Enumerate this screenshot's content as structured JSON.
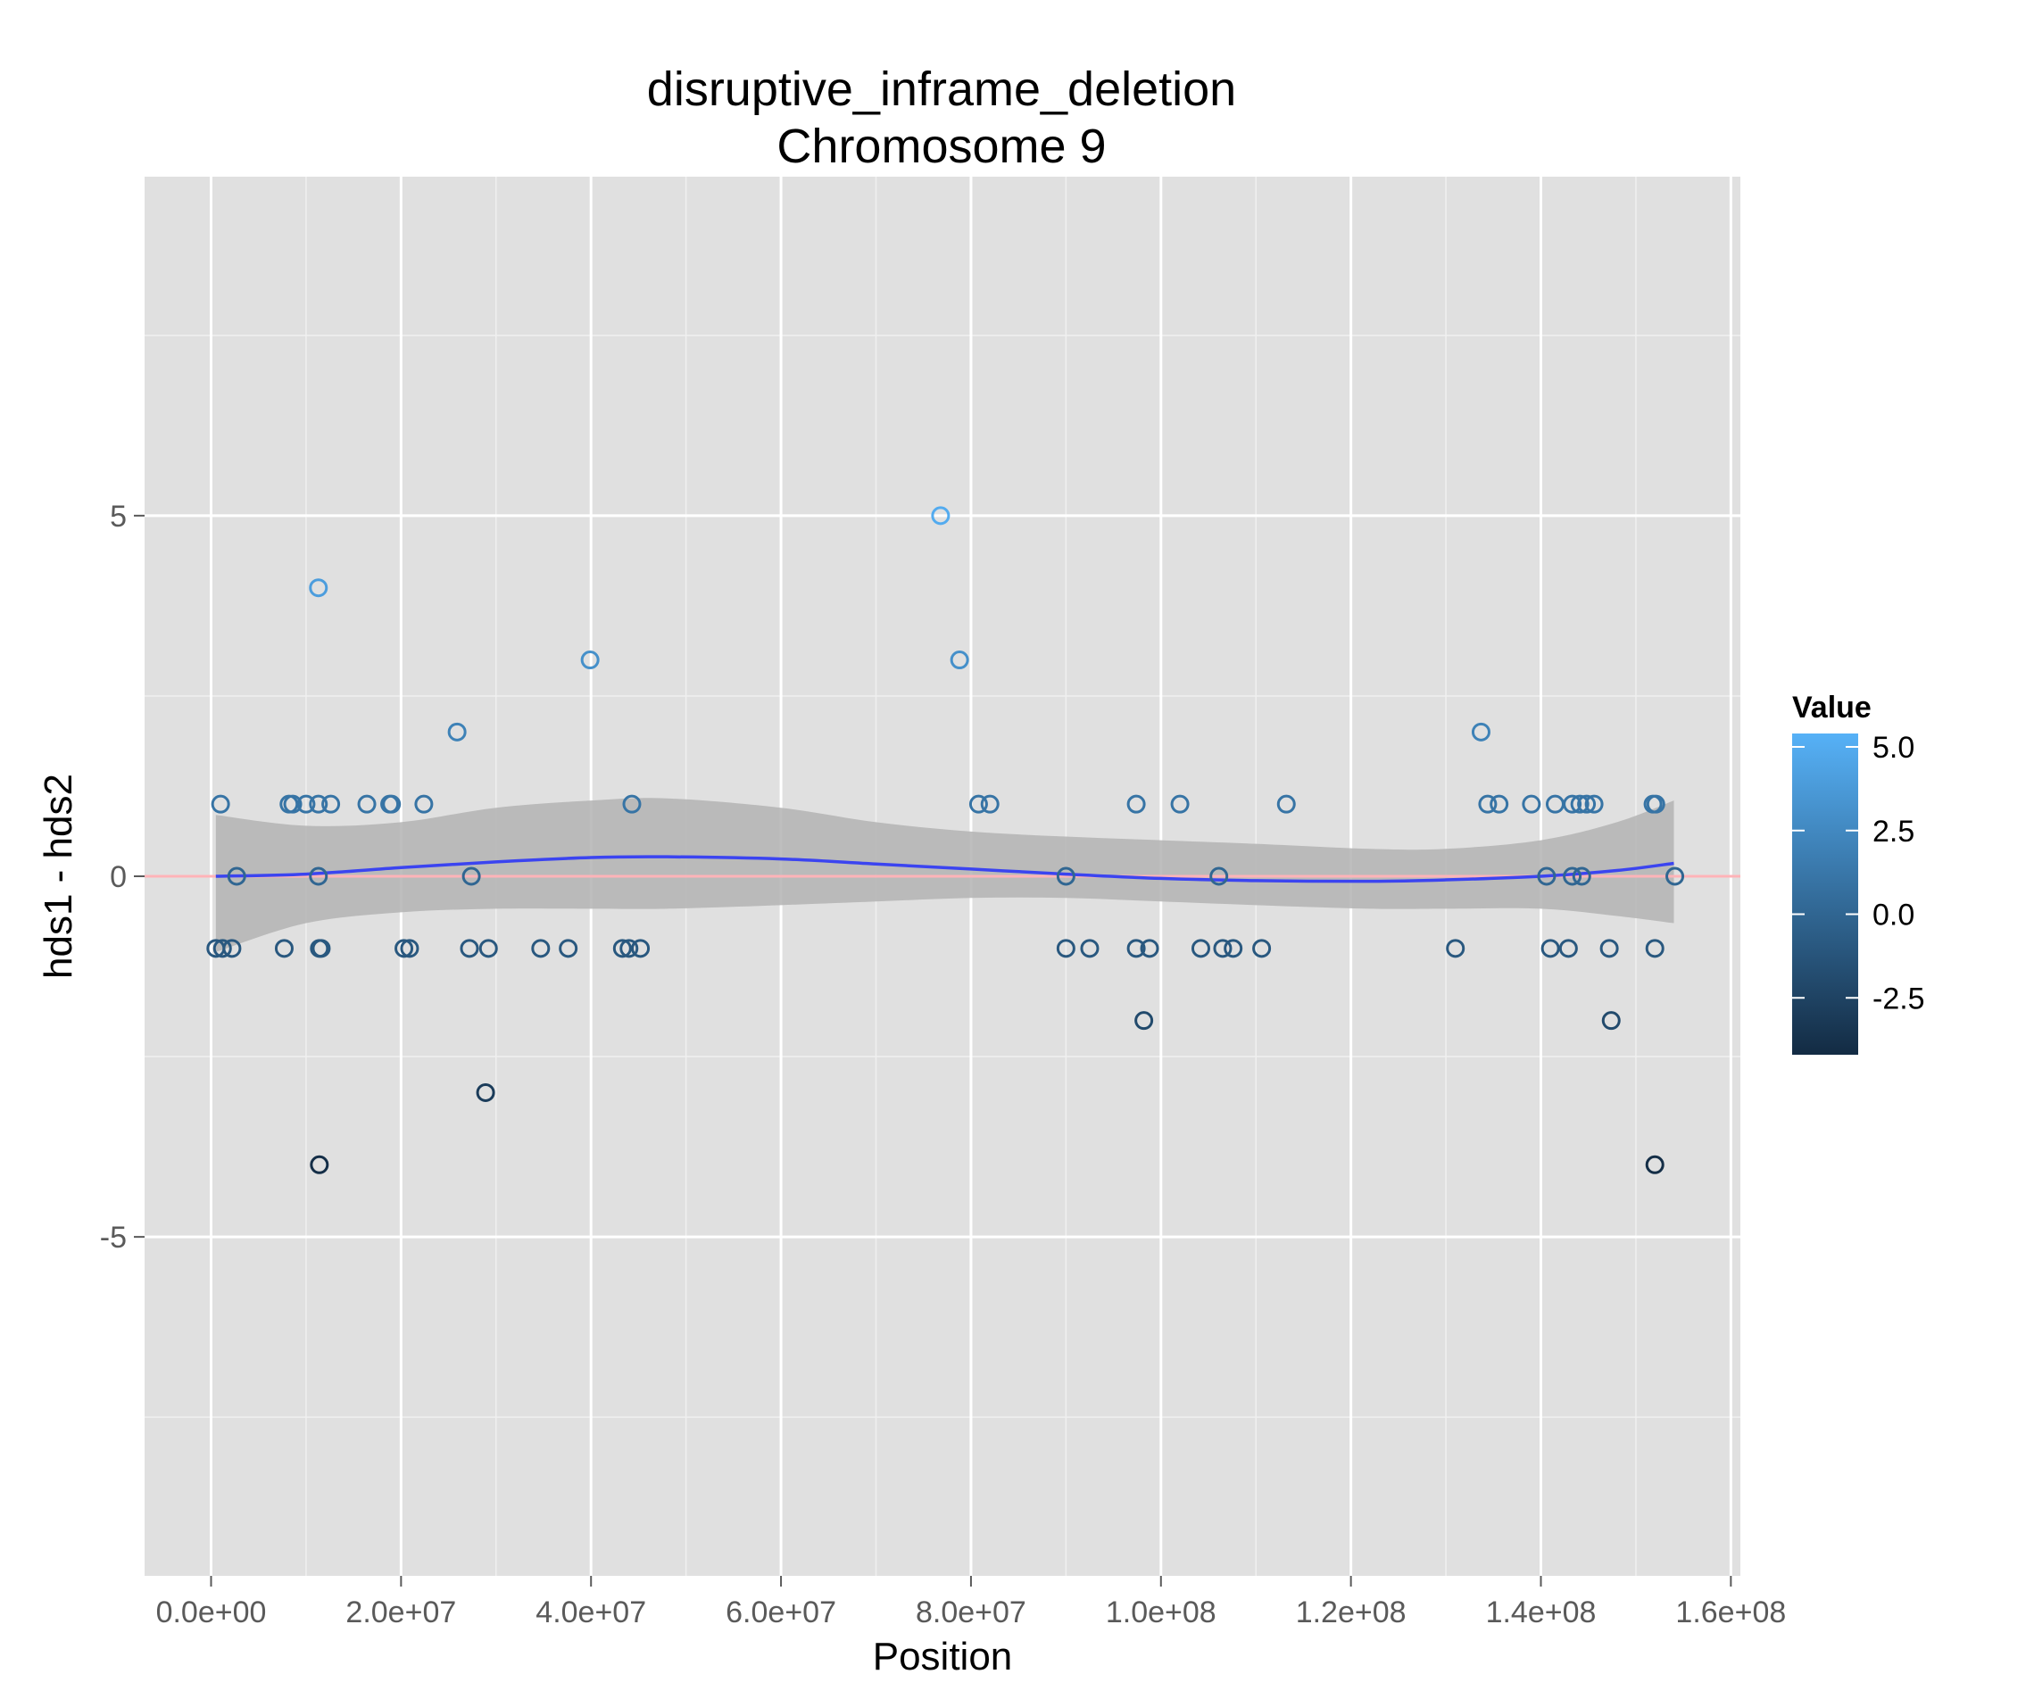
{
  "chart_data": {
    "type": "scatter",
    "title": "disruptive_inframe_deletion",
    "subtitle": "Chromosome 9",
    "xlabel": "Position",
    "ylabel": "hds1 - hds2",
    "xlim": [
      -7000000,
      161000000
    ],
    "ylim": [
      -9.7,
      9.7
    ],
    "x_ticks": [
      0,
      20000000,
      40000000,
      60000000,
      80000000,
      100000000,
      120000000,
      140000000,
      160000000
    ],
    "x_tick_labels": [
      "0.0e+00",
      "2.0e+07",
      "4.0e+07",
      "6.0e+07",
      "8.0e+07",
      "1.0e+08",
      "1.2e+08",
      "1.4e+08",
      "1.6e+08"
    ],
    "y_ticks": [
      -5,
      0,
      5
    ],
    "y_tick_labels": [
      "-5",
      "0",
      "5"
    ],
    "grid": true,
    "background": "#e0e0e0",
    "reference_line": {
      "y": 0,
      "color": "#ffb3b8"
    },
    "smooth_line": {
      "color": "#3b44f0",
      "band_color": "#b3b3b3",
      "points": [
        {
          "x": 500000,
          "y": 0.0,
          "lo": -1.05,
          "hi": 0.85
        },
        {
          "x": 10000000,
          "y": 0.03,
          "lo": -0.65,
          "hi": 0.7
        },
        {
          "x": 20000000,
          "y": 0.12,
          "lo": -0.5,
          "hi": 0.75
        },
        {
          "x": 30000000,
          "y": 0.2,
          "lo": -0.45,
          "hi": 0.95
        },
        {
          "x": 40000000,
          "y": 0.26,
          "lo": -0.45,
          "hi": 1.05
        },
        {
          "x": 48000000,
          "y": 0.27,
          "lo": -0.45,
          "hi": 1.08
        },
        {
          "x": 60000000,
          "y": 0.24,
          "lo": -0.4,
          "hi": 0.95
        },
        {
          "x": 70000000,
          "y": 0.17,
          "lo": -0.35,
          "hi": 0.75
        },
        {
          "x": 80000000,
          "y": 0.1,
          "lo": -0.3,
          "hi": 0.62
        },
        {
          "x": 90000000,
          "y": 0.03,
          "lo": -0.3,
          "hi": 0.55
        },
        {
          "x": 100000000,
          "y": -0.03,
          "lo": -0.35,
          "hi": 0.5
        },
        {
          "x": 110000000,
          "y": -0.06,
          "lo": -0.4,
          "hi": 0.45
        },
        {
          "x": 122000000,
          "y": -0.07,
          "lo": -0.45,
          "hi": 0.38
        },
        {
          "x": 130000000,
          "y": -0.05,
          "lo": -0.45,
          "hi": 0.38
        },
        {
          "x": 140000000,
          "y": 0.0,
          "lo": -0.45,
          "hi": 0.5
        },
        {
          "x": 148000000,
          "y": 0.08,
          "lo": -0.55,
          "hi": 0.75
        },
        {
          "x": 154000000,
          "y": 0.18,
          "lo": -0.65,
          "hi": 1.05
        }
      ]
    },
    "color_scale": {
      "name": "Value",
      "low": -4.2,
      "high": 5.4,
      "low_color": "#132b43",
      "high_color": "#56b1f7",
      "breaks": [
        5.0,
        2.5,
        0.0,
        -2.5
      ],
      "labels": [
        "5.0",
        "2.5",
        "0.0",
        "-2.5"
      ]
    },
    "points": [
      {
        "x": 500000,
        "y": -1
      },
      {
        "x": 1000000,
        "y": 1
      },
      {
        "x": 1200000,
        "y": -1
      },
      {
        "x": 2200000,
        "y": -1
      },
      {
        "x": 2700000,
        "y": 0
      },
      {
        "x": 7700000,
        "y": -1
      },
      {
        "x": 8200000,
        "y": 1
      },
      {
        "x": 8600000,
        "y": 1
      },
      {
        "x": 10000000,
        "y": 1
      },
      {
        "x": 11300000,
        "y": 1
      },
      {
        "x": 11300000,
        "y": 0
      },
      {
        "x": 11300000,
        "y": 4
      },
      {
        "x": 11400000,
        "y": -1
      },
      {
        "x": 11600000,
        "y": -1
      },
      {
        "x": 11400000,
        "y": -4
      },
      {
        "x": 12600000,
        "y": 1
      },
      {
        "x": 16400000,
        "y": 1
      },
      {
        "x": 18800000,
        "y": 1
      },
      {
        "x": 19000000,
        "y": 1
      },
      {
        "x": 20300000,
        "y": -1
      },
      {
        "x": 20900000,
        "y": -1
      },
      {
        "x": 22400000,
        "y": 1
      },
      {
        "x": 25900000,
        "y": 2
      },
      {
        "x": 27200000,
        "y": -1
      },
      {
        "x": 27400000,
        "y": 0
      },
      {
        "x": 28900000,
        "y": -3
      },
      {
        "x": 29200000,
        "y": -1
      },
      {
        "x": 34700000,
        "y": -1
      },
      {
        "x": 37600000,
        "y": -1
      },
      {
        "x": 39900000,
        "y": 3
      },
      {
        "x": 43300000,
        "y": -1
      },
      {
        "x": 44000000,
        "y": -1
      },
      {
        "x": 44300000,
        "y": 1
      },
      {
        "x": 45200000,
        "y": -1
      },
      {
        "x": 76800000,
        "y": 5
      },
      {
        "x": 78800000,
        "y": 3
      },
      {
        "x": 80800000,
        "y": 1
      },
      {
        "x": 82000000,
        "y": 1
      },
      {
        "x": 90000000,
        "y": 0
      },
      {
        "x": 90000000,
        "y": -1
      },
      {
        "x": 92500000,
        "y": -1
      },
      {
        "x": 97400000,
        "y": 1
      },
      {
        "x": 97400000,
        "y": -1
      },
      {
        "x": 98200000,
        "y": -2
      },
      {
        "x": 98800000,
        "y": -1
      },
      {
        "x": 102000000,
        "y": 1
      },
      {
        "x": 104200000,
        "y": -1
      },
      {
        "x": 106100000,
        "y": 0
      },
      {
        "x": 106500000,
        "y": -1
      },
      {
        "x": 107600000,
        "y": -1
      },
      {
        "x": 110600000,
        "y": -1
      },
      {
        "x": 113200000,
        "y": 1
      },
      {
        "x": 131000000,
        "y": -1
      },
      {
        "x": 133700000,
        "y": 2
      },
      {
        "x": 134400000,
        "y": 1
      },
      {
        "x": 135600000,
        "y": 1
      },
      {
        "x": 139000000,
        "y": 1
      },
      {
        "x": 140600000,
        "y": 0
      },
      {
        "x": 141000000,
        "y": -1
      },
      {
        "x": 141500000,
        "y": 1
      },
      {
        "x": 142900000,
        "y": -1
      },
      {
        "x": 143300000,
        "y": 1
      },
      {
        "x": 143300000,
        "y": 0
      },
      {
        "x": 144100000,
        "y": 1
      },
      {
        "x": 144300000,
        "y": 0
      },
      {
        "x": 144800000,
        "y": 1
      },
      {
        "x": 145600000,
        "y": 1
      },
      {
        "x": 147200000,
        "y": -1
      },
      {
        "x": 147400000,
        "y": -2
      },
      {
        "x": 151800000,
        "y": 1
      },
      {
        "x": 152000000,
        "y": -1
      },
      {
        "x": 152100000,
        "y": 1
      },
      {
        "x": 152000000,
        "y": -4
      },
      {
        "x": 154100000,
        "y": 0
      }
    ]
  }
}
